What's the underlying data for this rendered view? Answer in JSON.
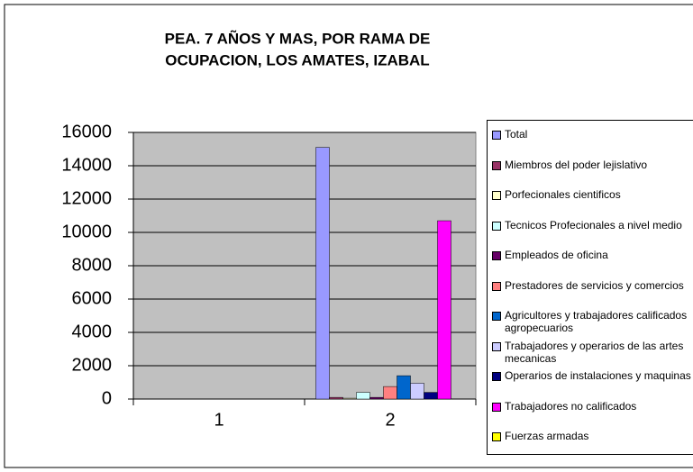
{
  "chart_data": {
    "type": "bar",
    "title": [
      "PEA. 7 AÑOS Y MAS, POR RAMA DE",
      "OCUPACION, LOS AMATES, IZABAL"
    ],
    "categories": [
      "1",
      "2"
    ],
    "ylim": [
      0,
      16000
    ],
    "yticks": [
      0,
      2000,
      4000,
      6000,
      8000,
      10000,
      12000,
      14000,
      16000
    ],
    "grid": true,
    "legend": "right",
    "series": [
      {
        "name": "Total",
        "color": "#9999FF",
        "values": [
          null,
          15100
        ]
      },
      {
        "name": "Miembros del poder lejislativo",
        "color": "#993366",
        "values": [
          null,
          100
        ]
      },
      {
        "name": "Porfecionales cientificos",
        "color": "#FFFFCC",
        "values": [
          null,
          50
        ]
      },
      {
        "name": "Tecnicos Profecionales a nivel medio",
        "color": "#CCFFFF",
        "values": [
          null,
          400
        ]
      },
      {
        "name": "Empleados de oficina",
        "color": "#660066",
        "values": [
          null,
          100
        ]
      },
      {
        "name": "Prestadores de servicios y comercios",
        "color": "#FF8080",
        "values": [
          null,
          750
        ]
      },
      {
        "name": "Agricultores y trabajadores calificados agropecuarios",
        "color": "#0066CC",
        "values": [
          null,
          1400
        ]
      },
      {
        "name": "Trabajadores y operarios de las artes mecanicas",
        "color": "#CCCCFF",
        "values": [
          null,
          950
        ]
      },
      {
        "name": "Operarios de instalaciones y maquinas",
        "color": "#000080",
        "values": [
          null,
          400
        ]
      },
      {
        "name": "Trabajadores no calificados",
        "color": "#FF00FF",
        "values": [
          null,
          10700
        ]
      },
      {
        "name": "Fuerzas armadas",
        "color": "#FFFF00",
        "values": [
          null,
          0
        ]
      }
    ]
  }
}
